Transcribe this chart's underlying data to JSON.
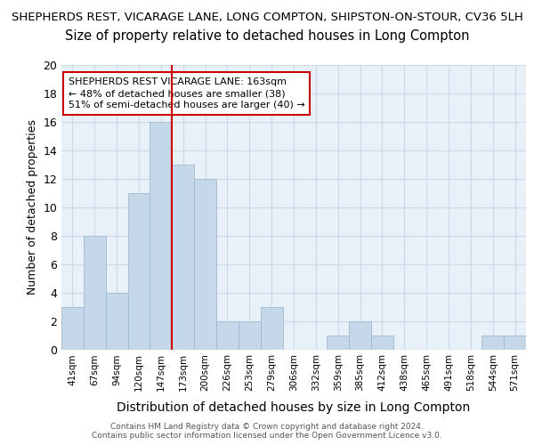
{
  "title": "SHEPHERDS REST, VICARAGE LANE, LONG COMPTON, SHIPSTON-ON-STOUR, CV36 5LH",
  "subtitle": "Size of property relative to detached houses in Long Compton",
  "xlabel": "Distribution of detached houses by size in Long Compton",
  "ylabel": "Number of detached properties",
  "bin_labels": [
    "41sqm",
    "67sqm",
    "94sqm",
    "120sqm",
    "147sqm",
    "173sqm",
    "200sqm",
    "226sqm",
    "253sqm",
    "279sqm",
    "306sqm",
    "332sqm",
    "359sqm",
    "385sqm",
    "412sqm",
    "438sqm",
    "465sqm",
    "491sqm",
    "518sqm",
    "544sqm",
    "571sqm"
  ],
  "bar_heights": [
    3,
    8,
    4,
    11,
    16,
    13,
    12,
    2,
    2,
    3,
    0,
    0,
    1,
    2,
    1,
    0,
    0,
    0,
    0,
    1,
    1
  ],
  "bar_color": "#c5d8ea",
  "bar_edge_color": "#a0b8cf",
  "annotation_text": "SHEPHERDS REST VICARAGE LANE: 163sqm\n← 48% of detached houses are smaller (38)\n51% of semi-detached houses are larger (40) →",
  "annotation_box_color": "#ffffff",
  "annotation_box_edge_color": "#cc0000",
  "footer_text": "Contains HM Land Registry data © Crown copyright and database right 2024.\nContains public sector information licensed under the Open Government Licence v3.0.",
  "ylim": [
    0,
    20
  ],
  "yticks": [
    0,
    2,
    4,
    6,
    8,
    10,
    12,
    14,
    16,
    18,
    20
  ],
  "grid_color": "#ccd9e8",
  "background_color": "#e8f0f8",
  "title_fontsize": 9.5,
  "subtitle_fontsize": 10.5,
  "xlabel_fontsize": 10,
  "ylabel_fontsize": 9
}
